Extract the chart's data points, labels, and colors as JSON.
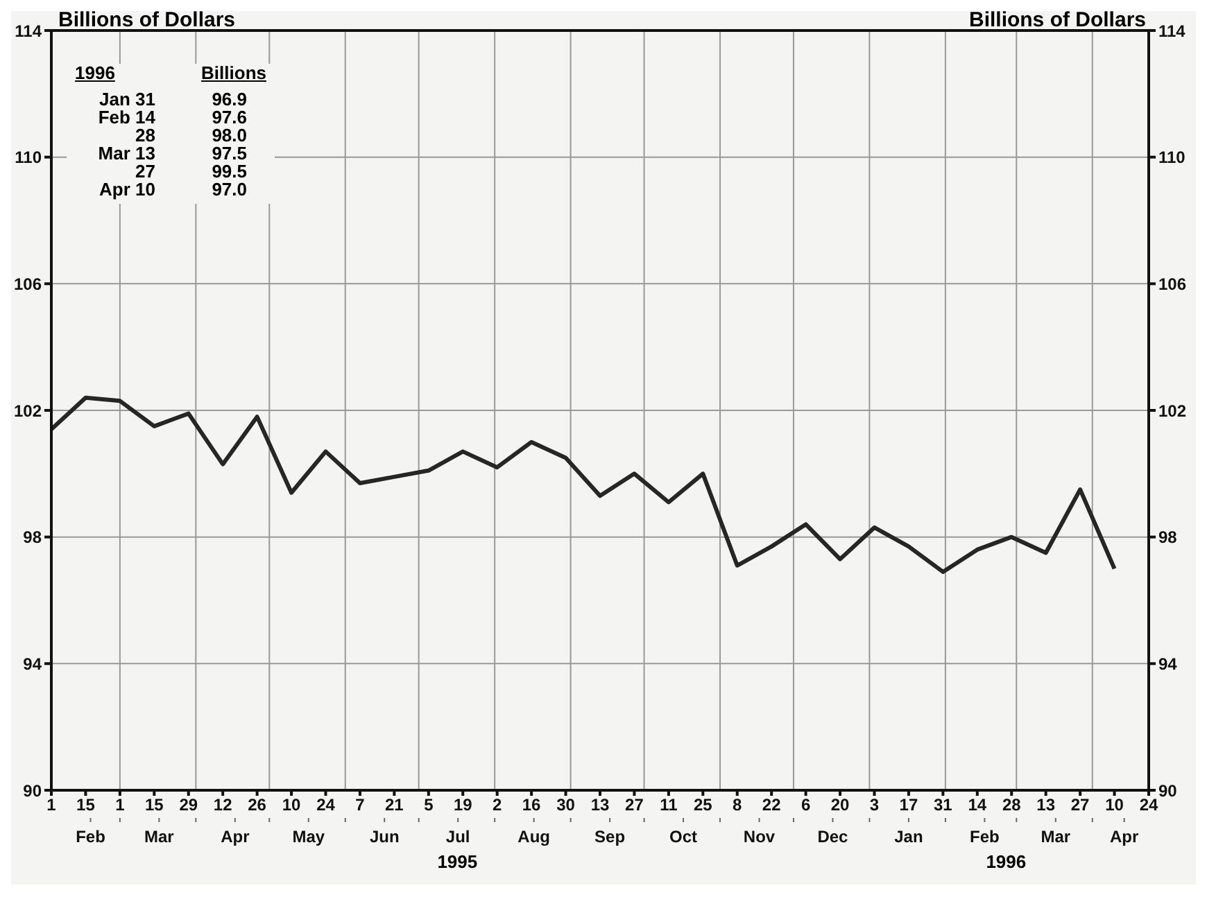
{
  "chart_data": {
    "type": "line",
    "ylabel": "Billions of Dollars",
    "y2label": "Billions of Dollars",
    "x": [
      "1995-02-01",
      "1995-02-15",
      "1995-03-01",
      "1995-03-15",
      "1995-03-29",
      "1995-04-12",
      "1995-04-26",
      "1995-05-10",
      "1995-05-24",
      "1995-06-07",
      "1995-06-21",
      "1995-07-05",
      "1995-07-19",
      "1995-08-02",
      "1995-08-16",
      "1995-08-30",
      "1995-09-13",
      "1995-09-27",
      "1995-10-11",
      "1995-10-25",
      "1995-11-08",
      "1995-11-22",
      "1995-12-06",
      "1995-12-20",
      "1996-01-03",
      "1996-01-17",
      "1996-01-31",
      "1996-02-14",
      "1996-02-28",
      "1996-03-13",
      "1996-03-27",
      "1996-04-10"
    ],
    "series": [
      {
        "color": "#262626",
        "values": [
          101.4,
          102.4,
          102.3,
          101.5,
          101.9,
          100.3,
          101.8,
          99.4,
          100.7,
          99.7,
          99.9,
          100.1,
          100.7,
          100.2,
          101.0,
          100.5,
          99.3,
          100.0,
          99.1,
          100.0,
          97.1,
          97.7,
          98.4,
          97.3,
          98.3,
          97.7,
          96.9,
          97.6,
          98.0,
          97.5,
          99.5,
          97.0
        ]
      }
    ],
    "xlim": [
      "1995-02-01",
      "1996-04-24"
    ],
    "xticks": [
      {
        "value": "1995-02-01",
        "label": "1"
      },
      {
        "value": "1995-02-15",
        "label": "15"
      },
      {
        "value": "1995-03-01",
        "label": "1"
      },
      {
        "value": "1995-03-15",
        "label": "15"
      },
      {
        "value": "1995-03-29",
        "label": "29"
      },
      {
        "value": "1995-04-12",
        "label": "12"
      },
      {
        "value": "1995-04-26",
        "label": "26"
      },
      {
        "value": "1995-05-10",
        "label": "10"
      },
      {
        "value": "1995-05-24",
        "label": "24"
      },
      {
        "value": "1995-06-07",
        "label": "7"
      },
      {
        "value": "1995-06-21",
        "label": "21"
      },
      {
        "value": "1995-07-05",
        "label": "5"
      },
      {
        "value": "1995-07-19",
        "label": "19"
      },
      {
        "value": "1995-08-02",
        "label": "2"
      },
      {
        "value": "1995-08-16",
        "label": "16"
      },
      {
        "value": "1995-08-30",
        "label": "30"
      },
      {
        "value": "1995-09-13",
        "label": "13"
      },
      {
        "value": "1995-09-27",
        "label": "27"
      },
      {
        "value": "1995-10-11",
        "label": "11"
      },
      {
        "value": "1995-10-25",
        "label": "25"
      },
      {
        "value": "1995-11-08",
        "label": "8"
      },
      {
        "value": "1995-11-22",
        "label": "22"
      },
      {
        "value": "1995-12-06",
        "label": "6"
      },
      {
        "value": "1995-12-20",
        "label": "20"
      },
      {
        "value": "1996-01-03",
        "label": "3"
      },
      {
        "value": "1996-01-17",
        "label": "17"
      },
      {
        "value": "1996-01-31",
        "label": "31"
      },
      {
        "value": "1996-02-14",
        "label": "14"
      },
      {
        "value": "1996-02-28",
        "label": "28"
      },
      {
        "value": "1996-03-13",
        "label": "13"
      },
      {
        "value": "1996-03-27",
        "label": "27"
      },
      {
        "value": "1996-04-10",
        "label": "10"
      },
      {
        "value": "1996-04-24",
        "label": "24"
      }
    ],
    "x2lim": [
      "1995-02-01",
      "1996-04-24"
    ],
    "x2ticks": [
      {
        "value": "1995-02-17",
        "label": "Feb"
      },
      {
        "value": "1995-03-01",
        "label": null
      },
      {
        "value": "1995-03-17",
        "label": "Mar"
      },
      {
        "value": "1995-04-01",
        "label": null
      },
      {
        "value": "1995-04-17",
        "label": "Apr"
      },
      {
        "value": "1995-05-01",
        "label": null
      },
      {
        "value": "1995-05-17",
        "label": "May"
      },
      {
        "value": "1995-06-01",
        "label": null
      },
      {
        "value": "1995-06-17",
        "label": "Jun"
      },
      {
        "value": "1995-07-01",
        "label": null
      },
      {
        "value": "1995-07-17",
        "label": "Jul"
      },
      {
        "value": "1995-08-01",
        "label": null
      },
      {
        "value": "1995-08-17",
        "label": "Aug"
      },
      {
        "value": "1995-09-01",
        "label": null
      },
      {
        "value": "1995-09-17",
        "label": "Sep"
      },
      {
        "value": "1995-10-01",
        "label": null
      },
      {
        "value": "1995-10-17",
        "label": "Oct"
      },
      {
        "value": "1995-11-01",
        "label": null
      },
      {
        "value": "1995-11-17",
        "label": "Nov"
      },
      {
        "value": "1995-12-01",
        "label": null
      },
      {
        "value": "1995-12-17",
        "label": "Dec"
      },
      {
        "value": "1996-01-01",
        "label": null
      },
      {
        "value": "1996-01-17",
        "label": "Jan"
      },
      {
        "value": "1996-02-01",
        "label": null
      },
      {
        "value": "1996-02-17",
        "label": "Feb"
      },
      {
        "value": "1996-03-01",
        "label": null
      },
      {
        "value": "1996-03-17",
        "label": "Mar"
      },
      {
        "value": "1996-04-01",
        "label": null
      },
      {
        "value": "1996-04-14",
        "label": "Apr"
      }
    ],
    "ylim": [
      90,
      114
    ],
    "yticks": [
      90,
      94,
      98,
      102,
      106,
      110,
      114
    ],
    "y2lim": [
      90,
      114
    ],
    "y2ticks": [
      90,
      94,
      98,
      102,
      106,
      110,
      114
    ],
    "grid": true,
    "marker": "none",
    "line_style": "solid",
    "annotations": [
      "1996",
      "Billions",
      "Jan 31",
      "96.9",
      "Feb 14",
      "97.6",
      "28",
      "98.0",
      "Mar 13",
      "97.5",
      "27",
      "99.5",
      "Apr 10",
      "97.0",
      "1995",
      "1996"
    ]
  }
}
